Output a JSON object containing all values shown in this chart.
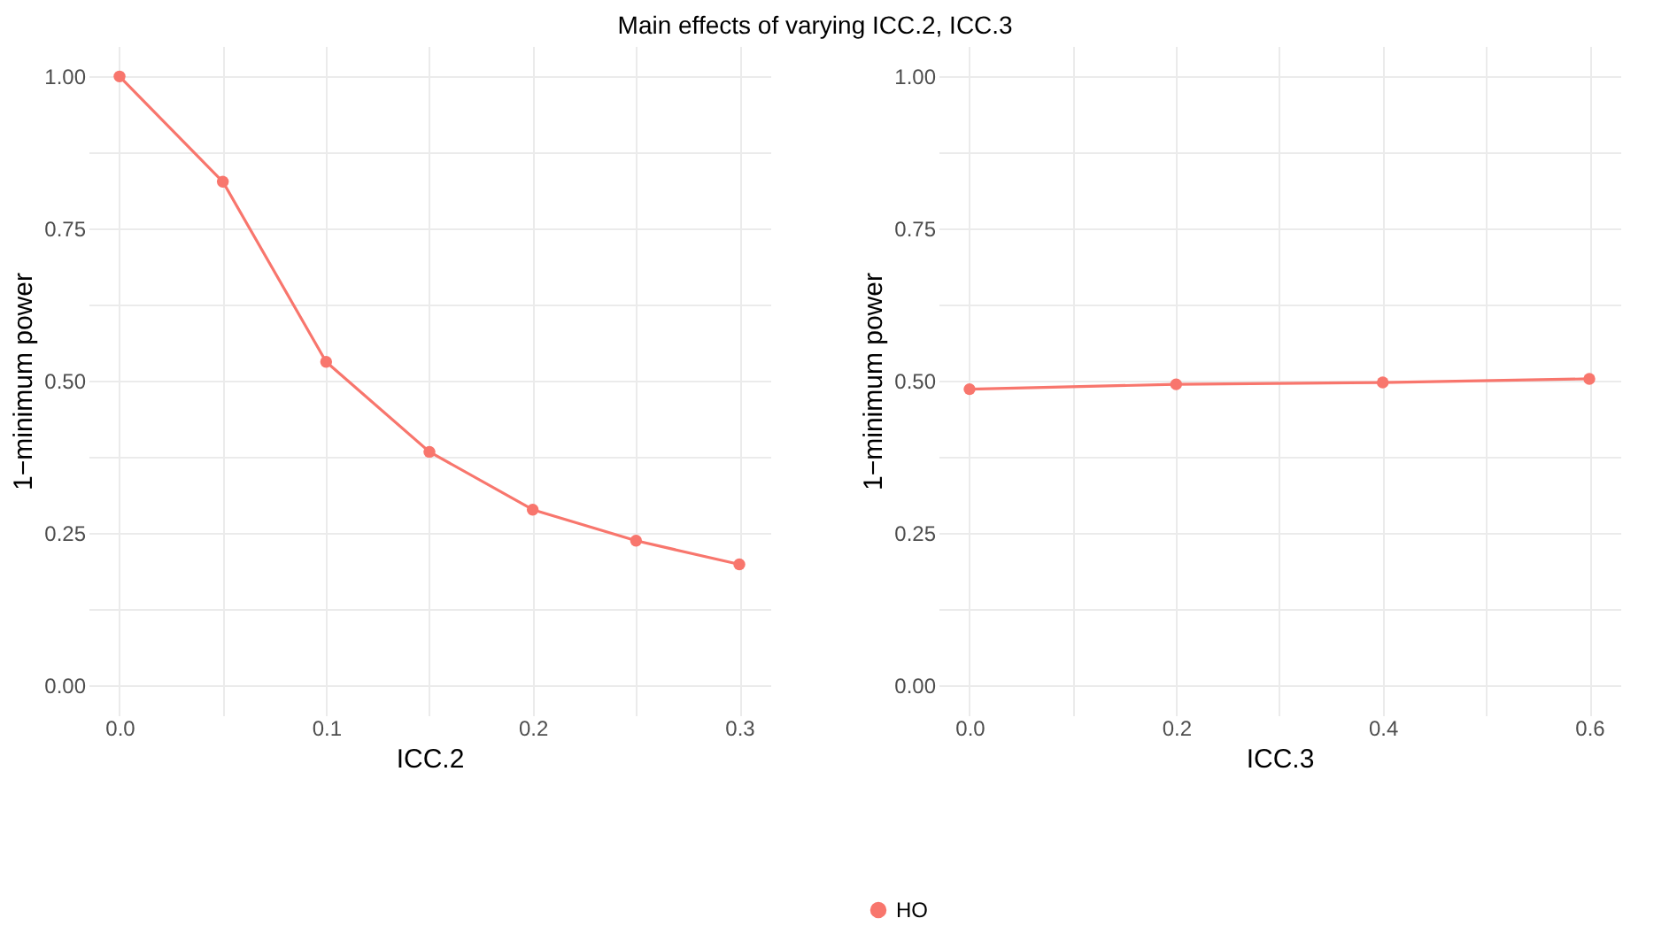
{
  "chart_data": [
    {
      "type": "line",
      "title": "Main effects of varying ICC.2, ICC.3",
      "xlabel": "ICC.2",
      "ylabel": "1−minimum power",
      "x": [
        0,
        0.05,
        0.1,
        0.15,
        0.2,
        0.25,
        0.3
      ],
      "series": [
        {
          "name": "HO",
          "color": "#f8766d",
          "values": [
            1.0,
            0.827,
            0.531,
            0.383,
            0.288,
            0.237,
            0.198
          ]
        }
      ],
      "xlim": [
        -0.015,
        0.315
      ],
      "xticks": [
        {
          "value": 0,
          "label": "0.0"
        },
        {
          "value": 0.05,
          "label": null
        },
        {
          "value": 0.1,
          "label": "0.1"
        },
        {
          "value": 0.15,
          "label": null
        },
        {
          "value": 0.2,
          "label": "0.2"
        },
        {
          "value": 0.25,
          "label": null
        },
        {
          "value": 0.3,
          "label": "0.3"
        }
      ],
      "ylim": [
        -0.05,
        1.05
      ],
      "yticks": [
        {
          "value": 0,
          "label": "0.00"
        },
        {
          "value": 0.125,
          "label": null
        },
        {
          "value": 0.25,
          "label": "0.25"
        },
        {
          "value": 0.375,
          "label": null
        },
        {
          "value": 0.5,
          "label": "0.50"
        },
        {
          "value": 0.625,
          "label": null
        },
        {
          "value": 0.75,
          "label": "0.75"
        },
        {
          "value": 0.875,
          "label": null
        },
        {
          "value": 1,
          "label": "1.00"
        }
      ],
      "grid": true,
      "marker": "circle",
      "legend": "bottom"
    },
    {
      "type": "line",
      "xlabel": "ICC.3",
      "ylabel": "1−minimum power",
      "x": [
        0,
        0.2,
        0.4,
        0.6
      ],
      "series": [
        {
          "name": "HO",
          "color": "#f8766d",
          "values": [
            0.486,
            0.494,
            0.497,
            0.503
          ]
        }
      ],
      "xlim": [
        -0.03,
        0.63
      ],
      "xticks": [
        {
          "value": 0,
          "label": "0.0"
        },
        {
          "value": 0.1,
          "label": null
        },
        {
          "value": 0.2,
          "label": "0.2"
        },
        {
          "value": 0.3,
          "label": null
        },
        {
          "value": 0.4,
          "label": "0.4"
        },
        {
          "value": 0.5,
          "label": null
        },
        {
          "value": 0.6,
          "label": "0.6"
        }
      ],
      "ylim": [
        -0.05,
        1.05
      ],
      "yticks": [
        {
          "value": 0,
          "label": "0.00"
        },
        {
          "value": 0.125,
          "label": null
        },
        {
          "value": 0.25,
          "label": "0.25"
        },
        {
          "value": 0.375,
          "label": null
        },
        {
          "value": 0.5,
          "label": "0.50"
        },
        {
          "value": 0.625,
          "label": null
        },
        {
          "value": 0.75,
          "label": "0.75"
        },
        {
          "value": 0.875,
          "label": null
        },
        {
          "value": 1,
          "label": "1.00"
        }
      ],
      "grid": true,
      "marker": "circle",
      "legend": "bottom"
    }
  ]
}
